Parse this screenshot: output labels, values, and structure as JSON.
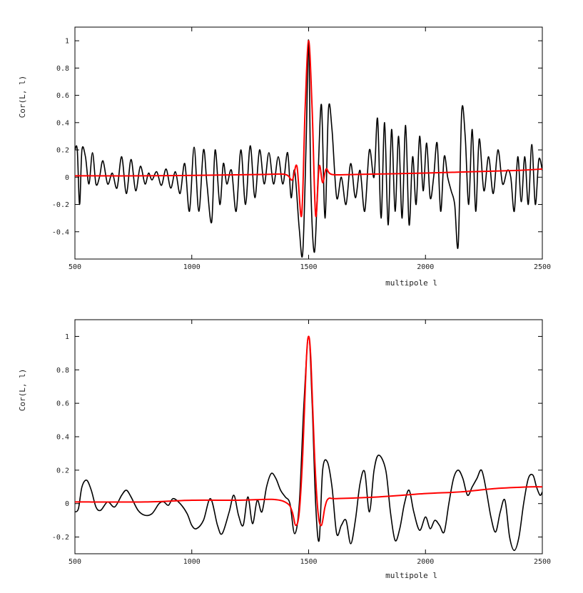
{
  "chart_data": [
    {
      "type": "line",
      "title": "",
      "xlabel": "multipole l",
      "ylabel": "Cor(L, l)",
      "xlim": [
        500,
        2500
      ],
      "ylim": [
        -0.6,
        1.1
      ],
      "xticks": [
        500,
        1000,
        1500,
        2000,
        2500
      ],
      "xtick_labels": [
        "500",
        "1000",
        "1500",
        "2000",
        "2500"
      ],
      "yticks": [
        -0.4,
        -0.2,
        0,
        0.2,
        0.4,
        0.6,
        0.8,
        1
      ],
      "ytick_labels": [
        "-0.4",
        "-0.2",
        "0",
        "0.2",
        "0.4",
        "0.6",
        "0.8",
        "1"
      ],
      "grid": false,
      "series": [
        {
          "color": "#000000",
          "x": [
            500,
            510,
            520,
            530,
            545,
            560,
            575,
            590,
            605,
            620,
            640,
            660,
            680,
            700,
            720,
            740,
            760,
            780,
            800,
            815,
            830,
            850,
            870,
            890,
            910,
            930,
            950,
            970,
            990,
            1010,
            1030,
            1050,
            1065,
            1085,
            1100,
            1120,
            1135,
            1150,
            1170,
            1190,
            1210,
            1230,
            1250,
            1270,
            1290,
            1310,
            1330,
            1350,
            1370,
            1390,
            1410,
            1425,
            1440,
            1460,
            1475,
            1490,
            1500,
            1510,
            1525,
            1540,
            1555,
            1570,
            1585,
            1600,
            1620,
            1640,
            1660,
            1680,
            1700,
            1720,
            1740,
            1760,
            1780,
            1795,
            1810,
            1825,
            1840,
            1855,
            1870,
            1885,
            1900,
            1915,
            1930,
            1945,
            1960,
            1975,
            1990,
            2005,
            2020,
            2035,
            2050,
            2065,
            2080,
            2095,
            2110,
            2125,
            2140,
            2155,
            2170,
            2185,
            2200,
            2215,
            2230,
            2250,
            2270,
            2290,
            2310,
            2330,
            2350,
            2365,
            2380,
            2395,
            2410,
            2425,
            2440,
            2455,
            2470,
            2485,
            2500
          ],
          "y": [
            0.2,
            0.2,
            -0.2,
            0.2,
            0.15,
            -0.05,
            0.18,
            -0.05,
            0.0,
            0.12,
            -0.05,
            0.03,
            -0.08,
            0.15,
            -0.12,
            0.13,
            -0.1,
            0.08,
            -0.05,
            0.03,
            -0.02,
            0.04,
            -0.06,
            0.06,
            -0.08,
            0.04,
            -0.12,
            0.1,
            -0.25,
            0.22,
            -0.25,
            0.2,
            -0.05,
            -0.33,
            0.2,
            -0.2,
            0.1,
            -0.05,
            0.05,
            -0.25,
            0.2,
            -0.2,
            0.23,
            -0.15,
            0.2,
            -0.05,
            0.18,
            -0.05,
            0.15,
            -0.05,
            0.18,
            -0.15,
            0.05,
            -0.38,
            -0.55,
            0.3,
            1.0,
            -0.1,
            -0.55,
            0.0,
            0.53,
            -0.3,
            0.5,
            0.35,
            -0.15,
            0.0,
            -0.2,
            0.1,
            -0.15,
            0.05,
            -0.25,
            0.2,
            0.0,
            0.43,
            -0.3,
            0.4,
            -0.35,
            0.35,
            -0.25,
            0.3,
            -0.3,
            0.38,
            -0.35,
            0.15,
            -0.2,
            0.3,
            -0.1,
            0.25,
            -0.15,
            0.0,
            0.25,
            -0.25,
            0.15,
            0.0,
            -0.1,
            -0.2,
            -0.5,
            0.48,
            0.3,
            -0.2,
            0.35,
            -0.25,
            0.28,
            -0.1,
            0.15,
            -0.12,
            0.2,
            -0.05,
            0.05,
            0.0,
            -0.25,
            0.15,
            -0.18,
            0.15,
            -0.2,
            0.24,
            -0.2,
            0.13,
            0.05
          ],
          "interpolation": "smooth"
        },
        {
          "color": "#ff0000",
          "x": [
            500,
            800,
            1100,
            1300,
            1400,
            1430,
            1450,
            1470,
            1485,
            1500,
            1515,
            1530,
            1545,
            1560,
            1575,
            1600,
            1700,
            2000,
            2200,
            2400,
            2500
          ],
          "y": [
            0.01,
            0.01,
            0.015,
            0.02,
            0.02,
            -0.02,
            0.08,
            -0.28,
            0.5,
            1.0,
            0.5,
            -0.28,
            0.08,
            -0.04,
            0.06,
            0.02,
            0.02,
            0.03,
            0.04,
            0.05,
            0.06
          ],
          "interpolation": "smooth"
        }
      ]
    },
    {
      "type": "line",
      "title": "",
      "xlabel": "multipole l",
      "ylabel": "Cor(L, l)",
      "xlim": [
        500,
        2500
      ],
      "ylim": [
        -0.3,
        1.1
      ],
      "xticks": [
        500,
        1000,
        1500,
        2000,
        2500
      ],
      "xtick_labels": [
        "500",
        "1000",
        "1500",
        "2000",
        "2500"
      ],
      "yticks": [
        -0.2,
        0,
        0.2,
        0.4,
        0.6,
        0.8,
        1
      ],
      "ytick_labels": [
        "-0.2",
        "0",
        "0.2",
        "0.4",
        "0.6",
        "0.8",
        "1"
      ],
      "grid": false,
      "series": [
        {
          "color": "#000000",
          "x": [
            500,
            515,
            530,
            550,
            570,
            590,
            610,
            640,
            670,
            700,
            720,
            740,
            770,
            800,
            830,
            860,
            880,
            900,
            920,
            950,
            980,
            1000,
            1020,
            1050,
            1080,
            1110,
            1130,
            1160,
            1180,
            1200,
            1220,
            1240,
            1260,
            1280,
            1300,
            1320,
            1340,
            1360,
            1380,
            1400,
            1420,
            1440,
            1460,
            1480,
            1500,
            1515,
            1530,
            1545,
            1560,
            1580,
            1600,
            1620,
            1640,
            1660,
            1680,
            1700,
            1720,
            1740,
            1760,
            1780,
            1800,
            1830,
            1850,
            1870,
            1890,
            1910,
            1930,
            1950,
            1975,
            2000,
            2020,
            2040,
            2060,
            2080,
            2100,
            2120,
            2140,
            2160,
            2180,
            2200,
            2220,
            2240,
            2260,
            2280,
            2300,
            2320,
            2340,
            2360,
            2380,
            2400,
            2420,
            2440,
            2460,
            2475,
            2490,
            2500
          ],
          "y": [
            -0.05,
            -0.03,
            0.1,
            0.14,
            0.08,
            -0.02,
            -0.04,
            0.01,
            -0.02,
            0.05,
            0.08,
            0.04,
            -0.04,
            -0.07,
            -0.06,
            0.0,
            0.01,
            -0.01,
            0.03,
            0.0,
            -0.06,
            -0.13,
            -0.15,
            -0.1,
            0.03,
            -0.13,
            -0.18,
            -0.05,
            0.05,
            -0.07,
            -0.13,
            0.04,
            -0.12,
            0.02,
            -0.05,
            0.1,
            0.18,
            0.15,
            0.08,
            0.04,
            0.0,
            -0.18,
            0.0,
            0.6,
            1.0,
            0.6,
            0.0,
            -0.22,
            0.2,
            0.25,
            0.1,
            -0.18,
            -0.13,
            -0.1,
            -0.24,
            -0.1,
            0.12,
            0.19,
            -0.05,
            0.2,
            0.29,
            0.2,
            -0.05,
            -0.22,
            -0.15,
            0.0,
            0.08,
            -0.05,
            -0.16,
            -0.08,
            -0.15,
            -0.1,
            -0.13,
            -0.17,
            0.0,
            0.15,
            0.2,
            0.15,
            0.05,
            0.1,
            0.15,
            0.2,
            0.08,
            -0.08,
            -0.17,
            -0.05,
            0.02,
            -0.2,
            -0.28,
            -0.2,
            0.0,
            0.15,
            0.17,
            0.1,
            0.05,
            0.07
          ],
          "interpolation": "smooth"
        },
        {
          "color": "#ff0000",
          "x": [
            500,
            800,
            1000,
            1200,
            1350,
            1410,
            1430,
            1445,
            1460,
            1475,
            1490,
            1500,
            1510,
            1525,
            1540,
            1555,
            1570,
            1585,
            1620,
            1800,
            2000,
            2150,
            2300,
            2450,
            2500
          ],
          "y": [
            0.01,
            0.01,
            0.02,
            0.02,
            0.025,
            0.0,
            -0.05,
            -0.13,
            -0.05,
            0.3,
            0.85,
            1.0,
            0.85,
            0.3,
            -0.05,
            -0.13,
            -0.02,
            0.03,
            0.03,
            0.04,
            0.06,
            0.07,
            0.09,
            0.1,
            0.1
          ],
          "interpolation": "smooth"
        }
      ]
    }
  ]
}
